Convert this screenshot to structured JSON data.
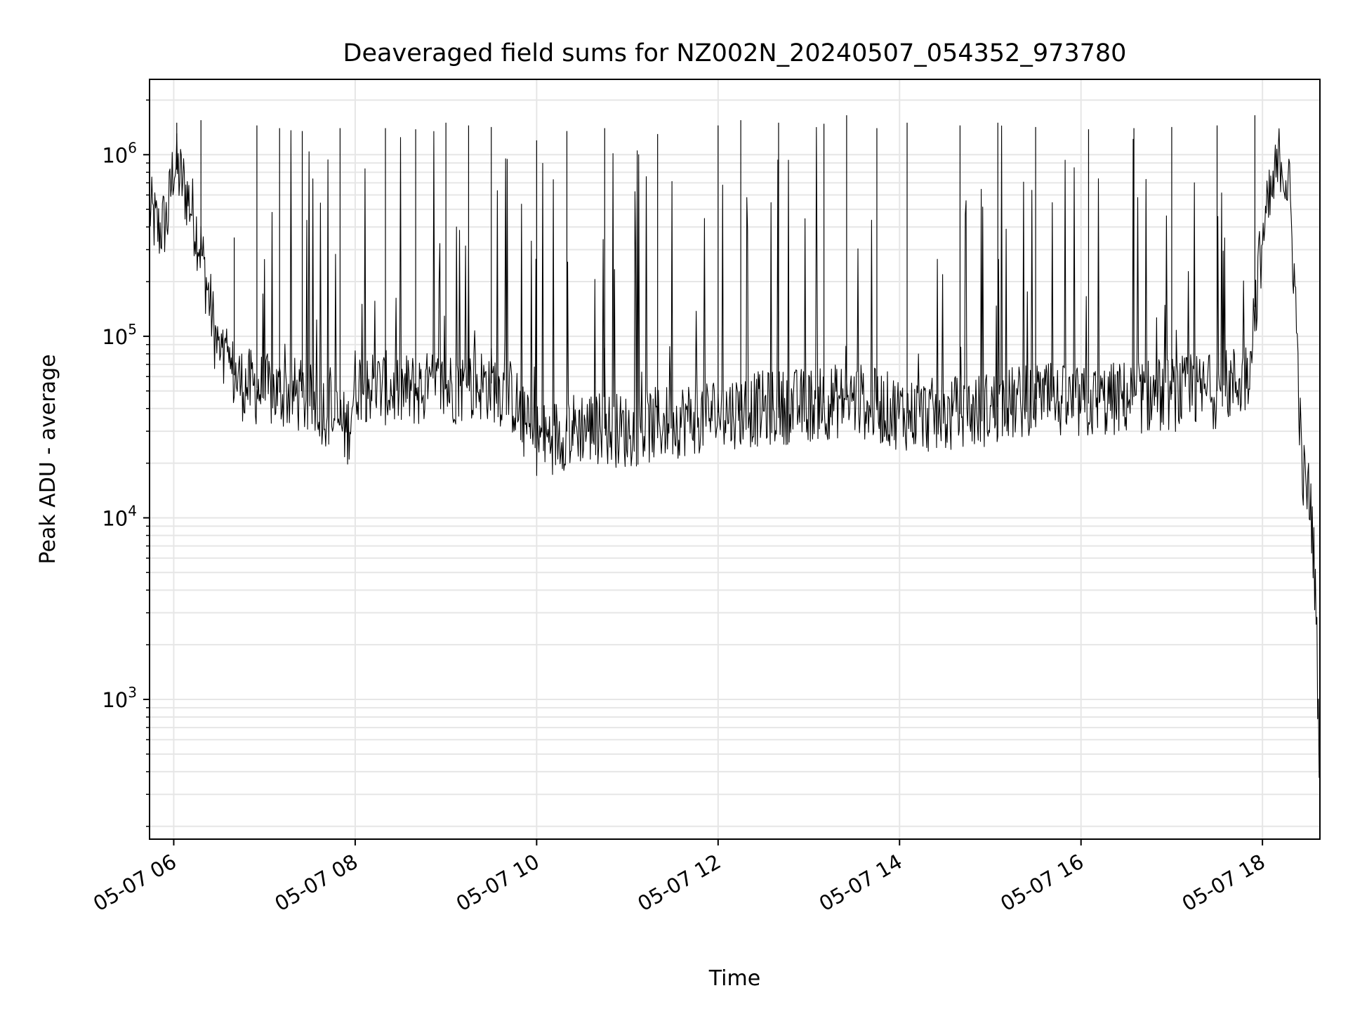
{
  "chart_data": {
    "type": "line",
    "title": "Deaveraged field sums for NZ002N_20240507_054352_973780",
    "xlabel": "Time",
    "ylabel": "Peak ADU - average",
    "yscale": "log",
    "ylim": [
      170,
      2600000
    ],
    "xlim": [
      "2024-05-07 05:44",
      "2024-05-07 18:38"
    ],
    "grid": true,
    "x_ticks": [
      {
        "value": "2024-05-07 06:00",
        "label": "05-07 06"
      },
      {
        "value": "2024-05-07 08:00",
        "label": "05-07 08"
      },
      {
        "value": "2024-05-07 10:00",
        "label": "05-07 10"
      },
      {
        "value": "2024-05-07 12:00",
        "label": "05-07 12"
      },
      {
        "value": "2024-05-07 14:00",
        "label": "05-07 14"
      },
      {
        "value": "2024-05-07 16:00",
        "label": "05-07 16"
      },
      {
        "value": "2024-05-07 18:00",
        "label": "05-07 18"
      }
    ],
    "y_ticks": [
      {
        "value": 1000,
        "base": "10",
        "exp": "3"
      },
      {
        "value": 10000,
        "base": "10",
        "exp": "4"
      },
      {
        "value": 100000,
        "base": "10",
        "exp": "5"
      },
      {
        "value": 1000000,
        "base": "10",
        "exp": "6"
      }
    ],
    "series": [
      {
        "color": "#000000",
        "baseline": [
          [
            "2024-05-07 05:44",
            500000
          ],
          [
            "2024-05-07 05:50",
            380000
          ],
          [
            "2024-05-07 05:56",
            450000
          ],
          [
            "2024-05-07 06:00",
            900000
          ],
          [
            "2024-05-07 06:06",
            700000
          ],
          [
            "2024-05-07 06:12",
            500000
          ],
          [
            "2024-05-07 06:18",
            300000
          ],
          [
            "2024-05-07 06:24",
            150000
          ],
          [
            "2024-05-07 06:30",
            75000
          ],
          [
            "2024-05-07 06:45",
            55000
          ],
          [
            "2024-05-07 07:00",
            50000
          ],
          [
            "2024-05-07 07:20",
            48000
          ],
          [
            "2024-05-07 07:40",
            40000
          ],
          [
            "2024-05-07 07:55",
            30000
          ],
          [
            "2024-05-07 08:00",
            55000
          ],
          [
            "2024-05-07 08:30",
            50000
          ],
          [
            "2024-05-07 09:00",
            52000
          ],
          [
            "2024-05-07 09:30",
            55000
          ],
          [
            "2024-05-07 09:45",
            45000
          ],
          [
            "2024-05-07 09:55",
            28000
          ],
          [
            "2024-05-07 10:05",
            27000
          ],
          [
            "2024-05-07 10:30",
            32000
          ],
          [
            "2024-05-07 11:00",
            30000
          ],
          [
            "2024-05-07 11:30",
            34000
          ],
          [
            "2024-05-07 12:00",
            38000
          ],
          [
            "2024-05-07 12:30",
            40000
          ],
          [
            "2024-05-07 13:00",
            42000
          ],
          [
            "2024-05-07 13:30",
            45000
          ],
          [
            "2024-05-07 14:00",
            38000
          ],
          [
            "2024-05-07 14:30",
            36000
          ],
          [
            "2024-05-07 15:00",
            40000
          ],
          [
            "2024-05-07 15:30",
            45000
          ],
          [
            "2024-05-07 16:00",
            42000
          ],
          [
            "2024-05-07 16:30",
            46000
          ],
          [
            "2024-05-07 17:00",
            48000
          ],
          [
            "2024-05-07 17:30",
            50000
          ],
          [
            "2024-05-07 17:50",
            60000
          ],
          [
            "2024-05-07 18:00",
            350000
          ],
          [
            "2024-05-07 18:12",
            1000000
          ],
          [
            "2024-05-07 18:18",
            600000
          ],
          [
            "2024-05-07 18:22",
            150000
          ],
          [
            "2024-05-07 18:26",
            18000
          ],
          [
            "2024-05-07 18:32",
            12000
          ],
          [
            "2024-05-07 18:35",
            4000
          ],
          [
            "2024-05-07 18:38",
            400
          ]
        ],
        "spikes": [
          [
            "2024-05-07 06:02",
            1500000
          ],
          [
            "2024-05-07 06:18",
            1550000
          ],
          [
            "2024-05-07 06:40",
            350000
          ],
          [
            "2024-05-07 06:55",
            1450000
          ],
          [
            "2024-05-07 07:10",
            1400000
          ],
          [
            "2024-05-07 07:25",
            1350000
          ],
          [
            "2024-05-07 07:50",
            1400000
          ],
          [
            "2024-05-07 08:20",
            1400000
          ],
          [
            "2024-05-07 08:40",
            1380000
          ],
          [
            "2024-05-07 09:00",
            1500000
          ],
          [
            "2024-05-07 09:15",
            1450000
          ],
          [
            "2024-05-07 09:30",
            1420000
          ],
          [
            "2024-05-07 10:00",
            1200000
          ],
          [
            "2024-05-07 10:20",
            1350000
          ],
          [
            "2024-05-07 10:45",
            1400000
          ],
          [
            "2024-05-07 11:20",
            1300000
          ],
          [
            "2024-05-07 12:00",
            1450000
          ],
          [
            "2024-05-07 12:15",
            1550000
          ],
          [
            "2024-05-07 12:40",
            1500000
          ],
          [
            "2024-05-07 13:10",
            1480000
          ],
          [
            "2024-05-07 13:25",
            1650000
          ],
          [
            "2024-05-07 13:45",
            1400000
          ],
          [
            "2024-05-07 14:05",
            1500000
          ],
          [
            "2024-05-07 14:40",
            1450000
          ],
          [
            "2024-05-07 15:05",
            1500000
          ],
          [
            "2024-05-07 15:30",
            1420000
          ],
          [
            "2024-05-07 16:05",
            1380000
          ],
          [
            "2024-05-07 16:35",
            1400000
          ],
          [
            "2024-05-07 17:00",
            1420000
          ],
          [
            "2024-05-07 17:30",
            1450000
          ],
          [
            "2024-05-07 17:55",
            1650000
          ]
        ]
      }
    ]
  }
}
